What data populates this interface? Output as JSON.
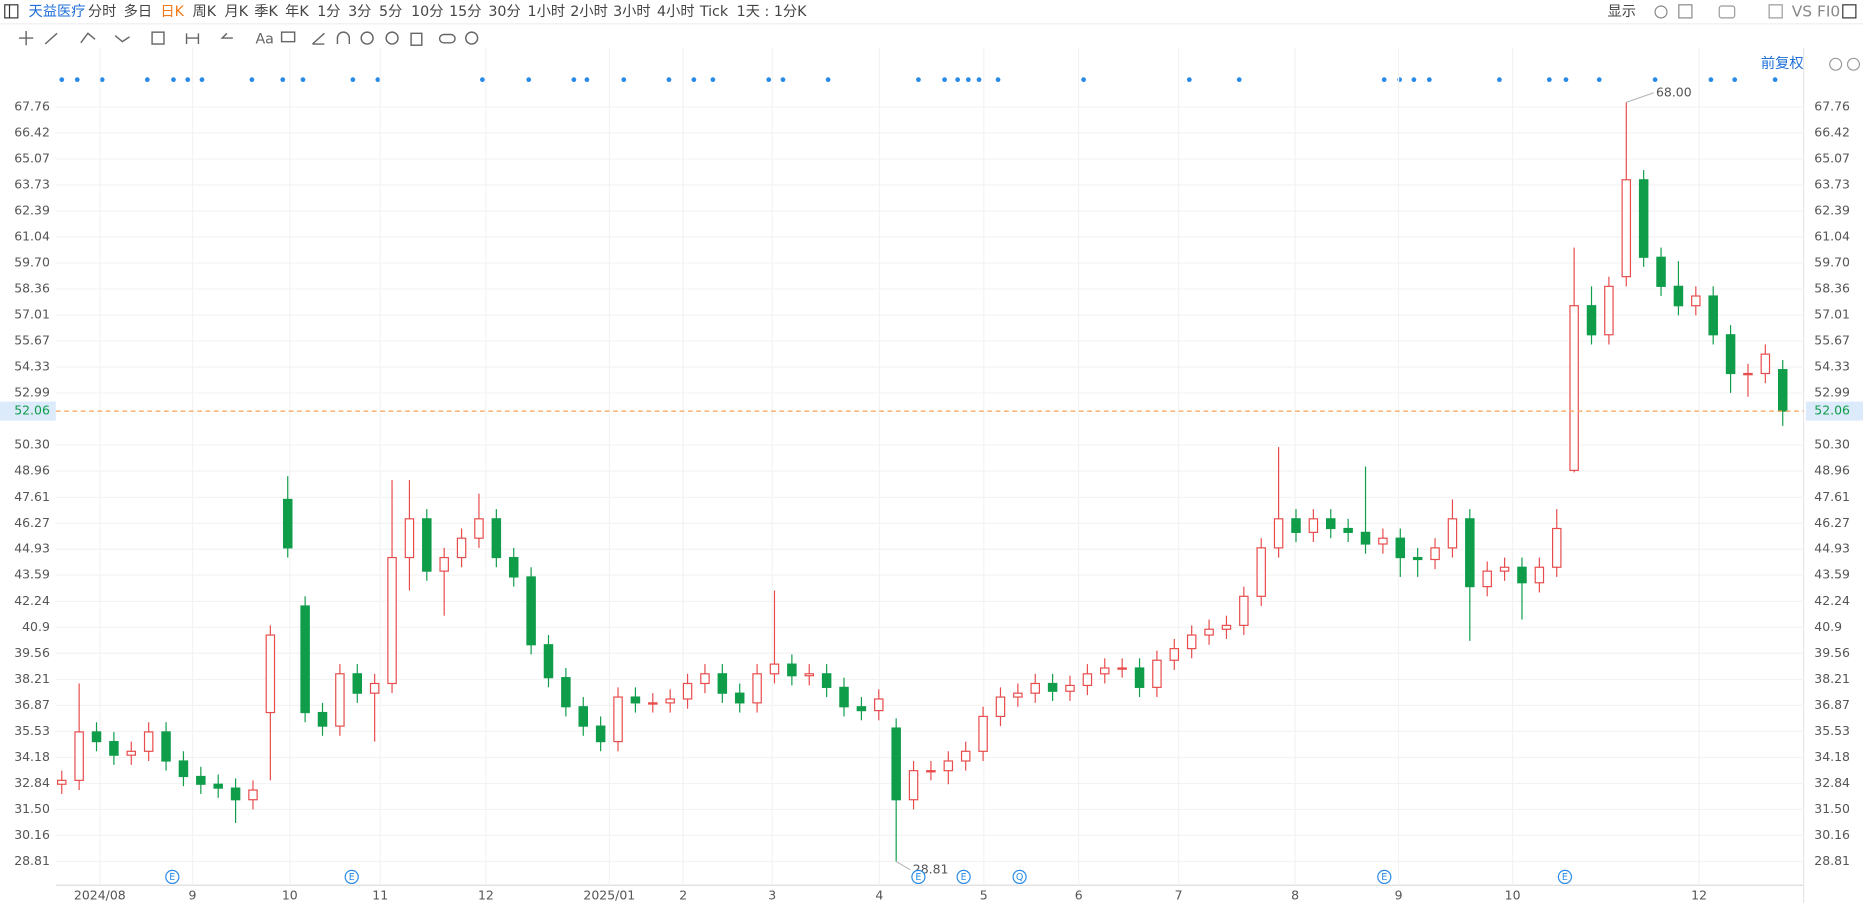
{
  "toolbar": {
    "symbol": "天益医疗",
    "periods": [
      "分时",
      "多日",
      "日K",
      "周K",
      "月K",
      "季K",
      "年K",
      "1分",
      "3分",
      "5分",
      "10分",
      "15分",
      "30分",
      "1小时",
      "2小时",
      "3小时",
      "4小时",
      "Tick",
      "1天 : 1分K"
    ],
    "active": "日K",
    "display": "显示",
    "compare": "VS FI0",
    "text_tool": "Aa",
    "adjust": "前复权"
  },
  "chart_data": {
    "type": "candlestick",
    "up_color": "#e84b4b",
    "down_color": "#0f9d4a",
    "open": [
      32.8,
      33.0,
      35.5,
      35.0,
      34.3,
      34.5,
      35.5,
      34.0,
      33.2,
      32.8,
      32.6,
      32.0,
      36.5,
      47.5,
      42.0,
      36.5,
      35.8,
      38.5,
      37.5,
      38.0,
      44.5,
      46.5,
      43.8,
      44.5,
      45.5,
      46.5,
      44.5,
      43.5,
      40.0,
      38.3,
      36.8,
      35.8,
      35.0,
      37.3,
      37.0,
      37.0,
      37.2,
      38.0,
      38.5,
      37.5,
      37.0,
      38.5,
      39.0,
      38.4,
      38.5,
      37.8,
      36.8,
      36.6,
      35.7,
      32.0,
      33.5,
      33.5,
      34.0,
      34.5,
      36.3,
      37.3,
      37.5,
      38.0,
      37.6,
      37.9,
      38.5,
      38.8,
      38.8,
      37.8,
      39.2,
      39.8,
      40.5,
      40.8,
      41.0,
      42.5,
      45.0,
      46.5,
      45.8,
      46.5,
      46.0,
      45.8,
      45.2,
      45.5,
      44.5,
      44.4,
      45.0,
      46.5,
      43.0,
      43.8,
      44.0,
      43.2,
      44.0,
      49.0,
      57.5,
      56.0,
      59.0,
      64.0,
      60.0,
      58.5,
      57.5,
      58.0,
      56.0,
      54.0,
      54.0,
      54.2
    ],
    "high": [
      33.5,
      38.0,
      36.0,
      35.5,
      35.0,
      36.0,
      36.0,
      34.5,
      33.7,
      33.3,
      33.1,
      33.0,
      41.0,
      48.7,
      42.5,
      37.0,
      39.0,
      39.0,
      38.5,
      48.5,
      48.5,
      47.0,
      45.0,
      46.0,
      47.8,
      47.0,
      45.0,
      44.0,
      40.5,
      38.8,
      37.3,
      36.3,
      37.8,
      37.8,
      37.5,
      37.7,
      38.5,
      39.0,
      39.0,
      38.0,
      39.0,
      42.8,
      39.5,
      39.0,
      39.0,
      38.3,
      37.3,
      37.7,
      36.2,
      34.0,
      34.0,
      34.5,
      35.0,
      36.8,
      37.8,
      38.0,
      38.5,
      38.5,
      38.4,
      39.0,
      39.3,
      39.3,
      39.3,
      39.7,
      40.3,
      41.0,
      41.3,
      41.5,
      43.0,
      45.5,
      50.2,
      47.0,
      47.0,
      47.0,
      46.5,
      49.2,
      46.0,
      46.0,
      45.0,
      45.5,
      47.5,
      47.0,
      44.3,
      44.5,
      44.5,
      44.5,
      47.0,
      60.5,
      58.5,
      59.0,
      68.0,
      64.5,
      60.5,
      59.8,
      58.5,
      58.5,
      56.5,
      54.5,
      55.5,
      54.7
    ],
    "low": [
      32.3,
      32.5,
      34.5,
      33.8,
      33.8,
      34.0,
      33.5,
      32.7,
      32.3,
      32.1,
      30.8,
      31.5,
      33.0,
      44.5,
      36.0,
      35.3,
      35.3,
      37.0,
      35.0,
      37.5,
      42.8,
      43.3,
      41.5,
      44.0,
      45.0,
      44.0,
      43.0,
      39.5,
      37.8,
      36.3,
      35.3,
      34.5,
      34.5,
      36.5,
      36.5,
      36.5,
      36.7,
      37.5,
      37.0,
      36.5,
      36.5,
      38.0,
      37.9,
      37.9,
      37.3,
      36.3,
      36.1,
      36.1,
      28.81,
      31.5,
      33.0,
      32.8,
      33.5,
      34.0,
      35.8,
      36.8,
      37.0,
      37.1,
      37.1,
      37.4,
      38.0,
      38.3,
      37.3,
      37.3,
      38.7,
      39.3,
      40.0,
      40.3,
      40.5,
      42.0,
      44.5,
      45.3,
      45.3,
      45.5,
      45.3,
      44.7,
      44.7,
      43.5,
      43.5,
      43.9,
      44.5,
      40.2,
      42.5,
      43.3,
      41.3,
      42.7,
      43.5,
      48.9,
      55.5,
      55.5,
      58.5,
      59.5,
      58.0,
      57.0,
      57.0,
      55.5,
      53.0,
      52.8,
      53.5,
      51.3
    ],
    "close": [
      33.0,
      35.5,
      35.0,
      34.3,
      34.5,
      35.5,
      34.0,
      33.2,
      32.8,
      32.6,
      32.0,
      32.5,
      40.5,
      45.0,
      36.5,
      35.8,
      38.5,
      37.5,
      38.0,
      44.5,
      46.5,
      43.8,
      44.5,
      45.5,
      46.5,
      44.5,
      43.5,
      40.0,
      38.3,
      36.8,
      35.8,
      35.0,
      37.3,
      37.0,
      37.0,
      37.2,
      38.0,
      38.5,
      37.5,
      37.0,
      38.5,
      39.0,
      38.4,
      38.5,
      37.8,
      36.8,
      36.6,
      37.2,
      32.0,
      33.5,
      33.5,
      34.0,
      34.5,
      36.3,
      37.3,
      37.5,
      38.0,
      37.6,
      37.9,
      38.5,
      38.8,
      38.8,
      37.8,
      39.2,
      39.8,
      40.5,
      40.8,
      41.0,
      42.5,
      45.0,
      46.5,
      45.8,
      46.5,
      46.0,
      45.8,
      45.2,
      45.5,
      44.5,
      44.4,
      45.0,
      46.5,
      43.0,
      43.8,
      44.0,
      43.2,
      44.0,
      46.0,
      57.5,
      56.0,
      58.5,
      64.0,
      60.0,
      58.5,
      57.5,
      58.0,
      56.0,
      54.0,
      54.0,
      55.0,
      52.06
    ],
    "xlim": [
      -0.34,
      100.2
    ],
    "xticks": [
      {
        "value": 2.19,
        "label": "2024/08"
      },
      {
        "value": 7.52,
        "label": "9"
      },
      {
        "value": 13.12,
        "label": "10"
      },
      {
        "value": 18.32,
        "label": "11"
      },
      {
        "value": 24.4,
        "label": "12"
      },
      {
        "value": 31.5,
        "label": "2025/01"
      },
      {
        "value": 35.75,
        "label": "2"
      },
      {
        "value": 40.87,
        "label": "3"
      },
      {
        "value": 47.03,
        "label": "4"
      },
      {
        "value": 53.04,
        "label": "5"
      },
      {
        "value": 58.5,
        "label": "6"
      },
      {
        "value": 64.25,
        "label": "7"
      },
      {
        "value": 70.95,
        "label": "8"
      },
      {
        "value": 76.9,
        "label": "9"
      },
      {
        "value": 83.46,
        "label": "10"
      },
      {
        "value": 94.19,
        "label": "12"
      }
    ],
    "ylim": [
      28.2,
      68.37
    ],
    "yticks": [
      28.81,
      30.16,
      {
        "value": 31.5,
        "label": "31.50"
      },
      32.84,
      34.18,
      35.53,
      36.87,
      38.21,
      39.56,
      40.9,
      42.24,
      43.59,
      44.93,
      46.27,
      47.61,
      48.96,
      {
        "value": 50.3,
        "label": "50.30"
      },
      52.99,
      54.33,
      55.67,
      57.01,
      58.36,
      {
        "value": 59.7,
        "label": "59.70"
      },
      61.04,
      62.39,
      63.73,
      65.07,
      66.42,
      67.76
    ],
    "grid": true,
    "last_price": 52.06,
    "last_color": "#f5a25d",
    "annotations": [
      {
        "index": 90,
        "value": 68.0,
        "text": "68.00"
      },
      {
        "index": 48,
        "value": 28.81,
        "text": "28.81"
      }
    ],
    "event_markers": [
      {
        "index": 6.36,
        "label": "E"
      },
      {
        "index": 16.68,
        "label": "E"
      },
      {
        "index": 49.28,
        "label": "E"
      },
      {
        "index": 51.88,
        "label": "E"
      },
      {
        "index": 55.1,
        "label": "Q"
      },
      {
        "index": 76.08,
        "label": "E"
      },
      {
        "index": 86.47,
        "label": "E"
      }
    ]
  }
}
